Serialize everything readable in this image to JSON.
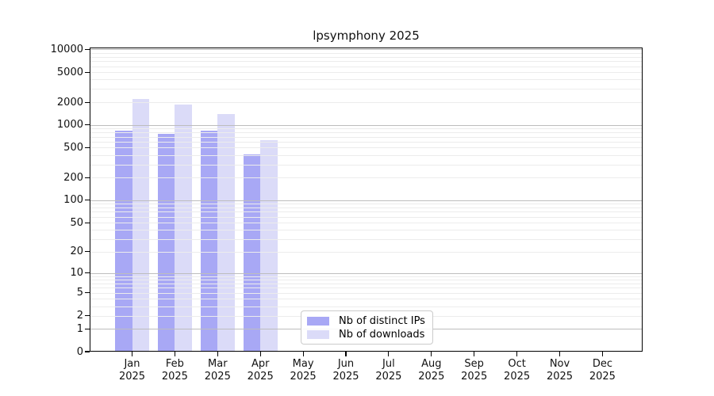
{
  "title": "lpsymphony 2025",
  "legend": {
    "items": [
      {
        "label": "Nb of distinct IPs",
        "swatch": "dark-periwinkle"
      },
      {
        "label": "Nb of downloads",
        "swatch": "light-lavender"
      }
    ]
  },
  "chart_data": {
    "type": "bar",
    "title": "lpsymphony 2025",
    "x": {
      "categories": [
        "Jan",
        "Feb",
        "Mar",
        "Apr",
        "May",
        "Jun",
        "Jul",
        "Aug",
        "Sep",
        "Oct",
        "Nov",
        "Dec"
      ],
      "year_label": "2025"
    },
    "y_axis": {
      "scale": "log10(value+1)",
      "ticks": [
        0,
        1,
        2,
        5,
        10,
        20,
        50,
        100,
        200,
        500,
        1000,
        2000,
        5000,
        10000
      ],
      "range": [
        0,
        10000
      ],
      "grid": true,
      "grid_minor_multiples": [
        2,
        3,
        4,
        5,
        6,
        7,
        8,
        9
      ],
      "grid_major_decades": [
        1,
        10,
        100,
        1000,
        10000
      ]
    },
    "series": [
      {
        "name": "Nb of distinct IPs",
        "color": "#a8a8f5",
        "values": [
          840,
          760,
          850,
          410,
          0,
          0,
          0,
          0,
          0,
          0,
          0,
          0
        ]
      },
      {
        "name": "Nb of downloads",
        "color": "#dbdbf8",
        "values": [
          2200,
          1880,
          1400,
          630,
          0,
          0,
          0,
          0,
          0,
          0,
          0,
          0
        ]
      }
    ],
    "legend_position": "inside-lower-center",
    "colors": {
      "grid_minor": "#ececec",
      "grid_major": "#bdbdbd",
      "axis": "#000000",
      "background": "#ffffff",
      "text": "#111111"
    }
  }
}
